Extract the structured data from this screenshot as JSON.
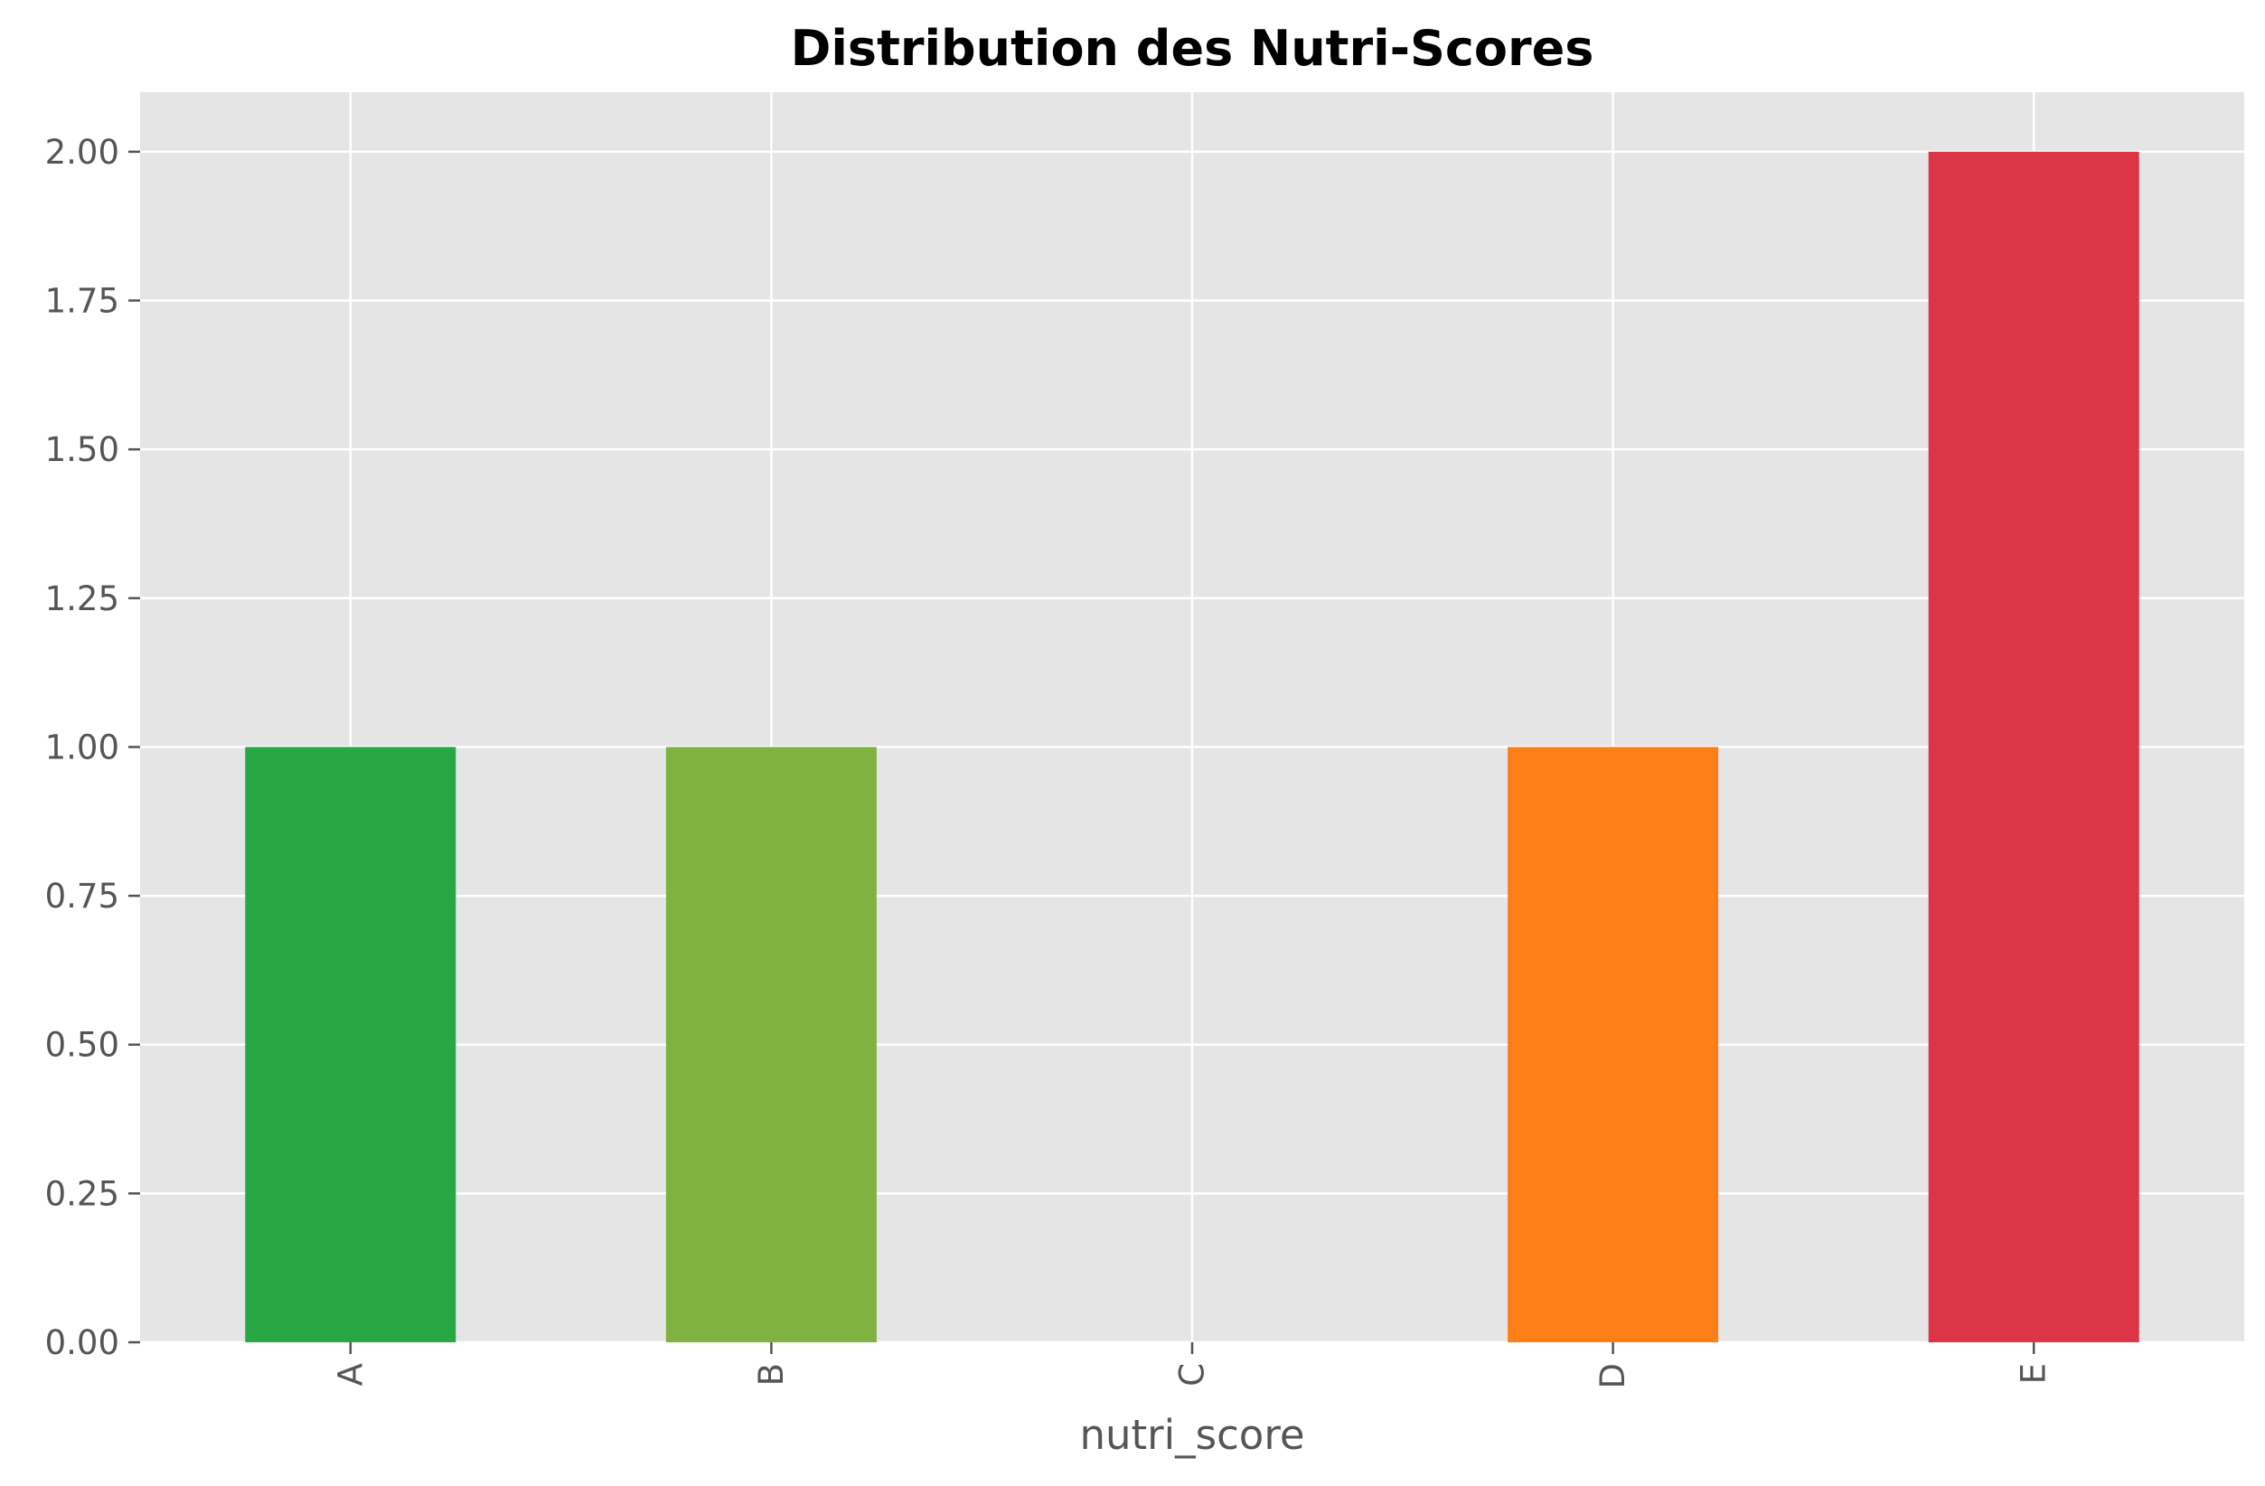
{
  "chart_data": {
    "type": "bar",
    "title": "Distribution des Nutri-Scores",
    "xlabel": "nutri_score",
    "ylabel": "",
    "categories": [
      "A",
      "B",
      "C",
      "D",
      "E"
    ],
    "values": [
      1,
      1,
      0,
      1,
      2
    ],
    "colors": [
      "#28a745",
      "#7fb241",
      "#f0c419",
      "#fd7f17",
      "#dc3545"
    ],
    "ylim": [
      0,
      2.1
    ],
    "yticks": [
      {
        "value": 0.0,
        "label": "0.00"
      },
      {
        "value": 0.25,
        "label": "0.25"
      },
      {
        "value": 0.5,
        "label": "0.50"
      },
      {
        "value": 0.75,
        "label": "0.75"
      },
      {
        "value": 1.0,
        "label": "1.00"
      },
      {
        "value": 1.25,
        "label": "1.25"
      },
      {
        "value": 1.5,
        "label": "1.50"
      },
      {
        "value": 1.75,
        "label": "1.75"
      },
      {
        "value": 2.0,
        "label": "2.00"
      }
    ],
    "grid": true,
    "background_color": "#e5e5e5",
    "grid_color": "#ffffff",
    "x_tick_rotation": "vertical"
  }
}
